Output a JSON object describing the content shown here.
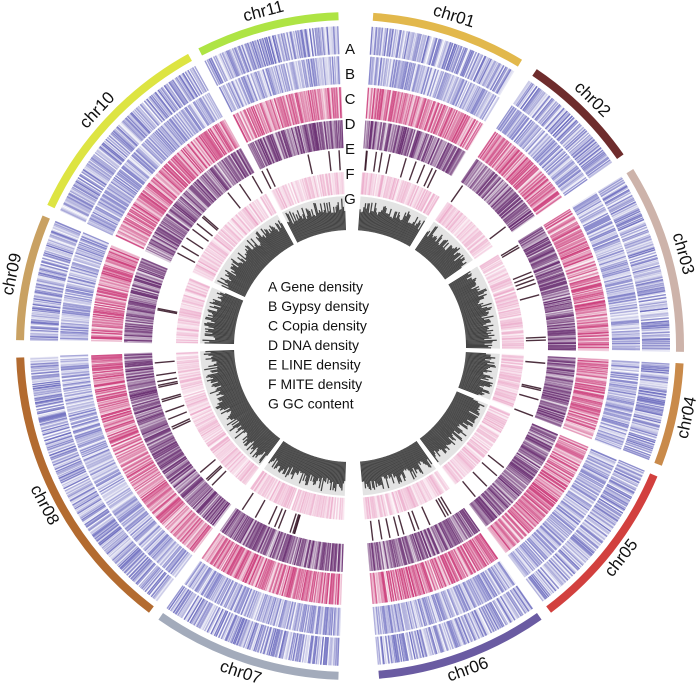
{
  "chromosomes": [
    {
      "name": "chr01",
      "color": "#e2b84c"
    },
    {
      "name": "chr02",
      "color": "#6e2c2c"
    },
    {
      "name": "chr03",
      "color": "#cdb3aa"
    },
    {
      "name": "chr04",
      "color": "#c98a4a"
    },
    {
      "name": "chr05",
      "color": "#d2403e"
    },
    {
      "name": "chr06",
      "color": "#6a5ba2"
    },
    {
      "name": "chr07",
      "color": "#a3abbb"
    },
    {
      "name": "chr08",
      "color": "#b36b30"
    },
    {
      "name": "chr09",
      "color": "#c9a162"
    },
    {
      "name": "chr10",
      "color": "#dde442"
    },
    {
      "name": "chr11",
      "color": "#aee444"
    }
  ],
  "tracks": [
    {
      "letter": "A",
      "legend": "A Gene density",
      "color": "#6f6fc0"
    },
    {
      "letter": "B",
      "legend": "B Gypsy density",
      "color": "#7f7fc8"
    },
    {
      "letter": "C",
      "legend": "C Copia density",
      "color": "#cc3f7c"
    },
    {
      "letter": "D",
      "legend": "D DNA density",
      "color": "#6a2f72"
    },
    {
      "letter": "E",
      "legend": "E LINE density",
      "color": "#3a1a2a"
    },
    {
      "letter": "F",
      "legend": "F MITE density",
      "color": "#e48ab6"
    },
    {
      "letter": "G",
      "legend": "G GC content",
      "color": "#444444"
    }
  ]
}
